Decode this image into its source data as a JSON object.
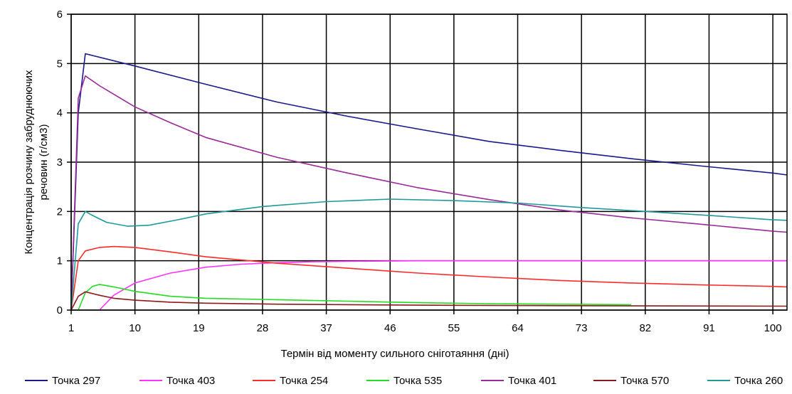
{
  "chart_data": {
    "type": "line",
    "title": "",
    "xlabel": "Термін від моменту сильного сніготаяння (дні)",
    "ylabel_line1": "Концентрація розчину забруднюючих",
    "ylabel_line2": "речовин (г/см3)",
    "xlim": [
      1,
      102
    ],
    "ylim": [
      0,
      6
    ],
    "x_ticks": [
      1,
      10,
      19,
      28,
      37,
      46,
      55,
      64,
      73,
      82,
      91,
      100
    ],
    "y_ticks": [
      0,
      1,
      2,
      3,
      4,
      5,
      6
    ],
    "grid": true,
    "legend_position": "bottom",
    "series": [
      {
        "name": "Точка 297",
        "color": "#1a1a8c",
        "points": [
          [
            1,
            0
          ],
          [
            2,
            4.0
          ],
          [
            3,
            5.2
          ],
          [
            10,
            4.95
          ],
          [
            20,
            4.58
          ],
          [
            30,
            4.22
          ],
          [
            40,
            3.93
          ],
          [
            50,
            3.67
          ],
          [
            60,
            3.42
          ],
          [
            70,
            3.24
          ],
          [
            80,
            3.07
          ],
          [
            90,
            2.92
          ],
          [
            100,
            2.78
          ],
          [
            102,
            2.74
          ]
        ]
      },
      {
        "name": "Точка 403",
        "color": "#ff33ff",
        "points": [
          [
            5,
            0
          ],
          [
            7,
            0.3
          ],
          [
            10,
            0.55
          ],
          [
            15,
            0.75
          ],
          [
            20,
            0.87
          ],
          [
            25,
            0.93
          ],
          [
            30,
            0.96
          ],
          [
            35,
            0.98
          ],
          [
            40,
            0.99
          ],
          [
            50,
            1.0
          ],
          [
            60,
            1.0
          ],
          [
            80,
            1.0
          ],
          [
            102,
            1.0
          ]
        ]
      },
      {
        "name": "Точка 254",
        "color": "#ff2a2a",
        "points": [
          [
            1,
            0
          ],
          [
            2,
            1.0
          ],
          [
            3,
            1.2
          ],
          [
            5,
            1.27
          ],
          [
            7,
            1.29
          ],
          [
            10,
            1.27
          ],
          [
            15,
            1.18
          ],
          [
            20,
            1.08
          ],
          [
            30,
            0.95
          ],
          [
            40,
            0.85
          ],
          [
            50,
            0.75
          ],
          [
            60,
            0.67
          ],
          [
            70,
            0.6
          ],
          [
            80,
            0.55
          ],
          [
            90,
            0.51
          ],
          [
            100,
            0.48
          ],
          [
            102,
            0.47
          ]
        ]
      },
      {
        "name": "Точка 535",
        "color": "#22dd22",
        "points": [
          [
            2,
            0
          ],
          [
            3,
            0.35
          ],
          [
            4,
            0.48
          ],
          [
            5,
            0.52
          ],
          [
            7,
            0.47
          ],
          [
            10,
            0.38
          ],
          [
            15,
            0.28
          ],
          [
            20,
            0.24
          ],
          [
            30,
            0.21
          ],
          [
            40,
            0.18
          ],
          [
            50,
            0.15
          ],
          [
            60,
            0.13
          ],
          [
            70,
            0.12
          ],
          [
            80,
            0.11
          ]
        ]
      },
      {
        "name": "Точка 401",
        "color": "#9a2a9a",
        "points": [
          [
            1,
            0
          ],
          [
            2,
            4.3
          ],
          [
            3,
            4.75
          ],
          [
            5,
            4.55
          ],
          [
            10,
            4.12
          ],
          [
            15,
            3.8
          ],
          [
            20,
            3.5
          ],
          [
            30,
            3.1
          ],
          [
            40,
            2.78
          ],
          [
            50,
            2.48
          ],
          [
            60,
            2.24
          ],
          [
            70,
            2.03
          ],
          [
            80,
            1.87
          ],
          [
            90,
            1.74
          ],
          [
            100,
            1.6
          ],
          [
            102,
            1.58
          ]
        ]
      },
      {
        "name": "Точка 570",
        "color": "#8b1a1a",
        "points": [
          [
            1,
            0
          ],
          [
            2,
            0.28
          ],
          [
            3,
            0.37
          ],
          [
            5,
            0.3
          ],
          [
            7,
            0.24
          ],
          [
            10,
            0.2
          ],
          [
            15,
            0.16
          ],
          [
            20,
            0.14
          ],
          [
            30,
            0.12
          ],
          [
            50,
            0.1
          ],
          [
            70,
            0.09
          ],
          [
            102,
            0.08
          ]
        ]
      },
      {
        "name": "Точка 260",
        "color": "#1f9a9a",
        "points": [
          [
            1,
            0
          ],
          [
            2,
            1.75
          ],
          [
            3,
            2.0
          ],
          [
            4,
            1.92
          ],
          [
            6,
            1.78
          ],
          [
            9,
            1.7
          ],
          [
            12,
            1.72
          ],
          [
            16,
            1.83
          ],
          [
            20,
            1.95
          ],
          [
            28,
            2.1
          ],
          [
            37,
            2.2
          ],
          [
            46,
            2.25
          ],
          [
            55,
            2.22
          ],
          [
            64,
            2.17
          ],
          [
            73,
            2.08
          ],
          [
            82,
            2.0
          ],
          [
            91,
            1.92
          ],
          [
            100,
            1.83
          ],
          [
            102,
            1.82
          ]
        ]
      }
    ]
  }
}
